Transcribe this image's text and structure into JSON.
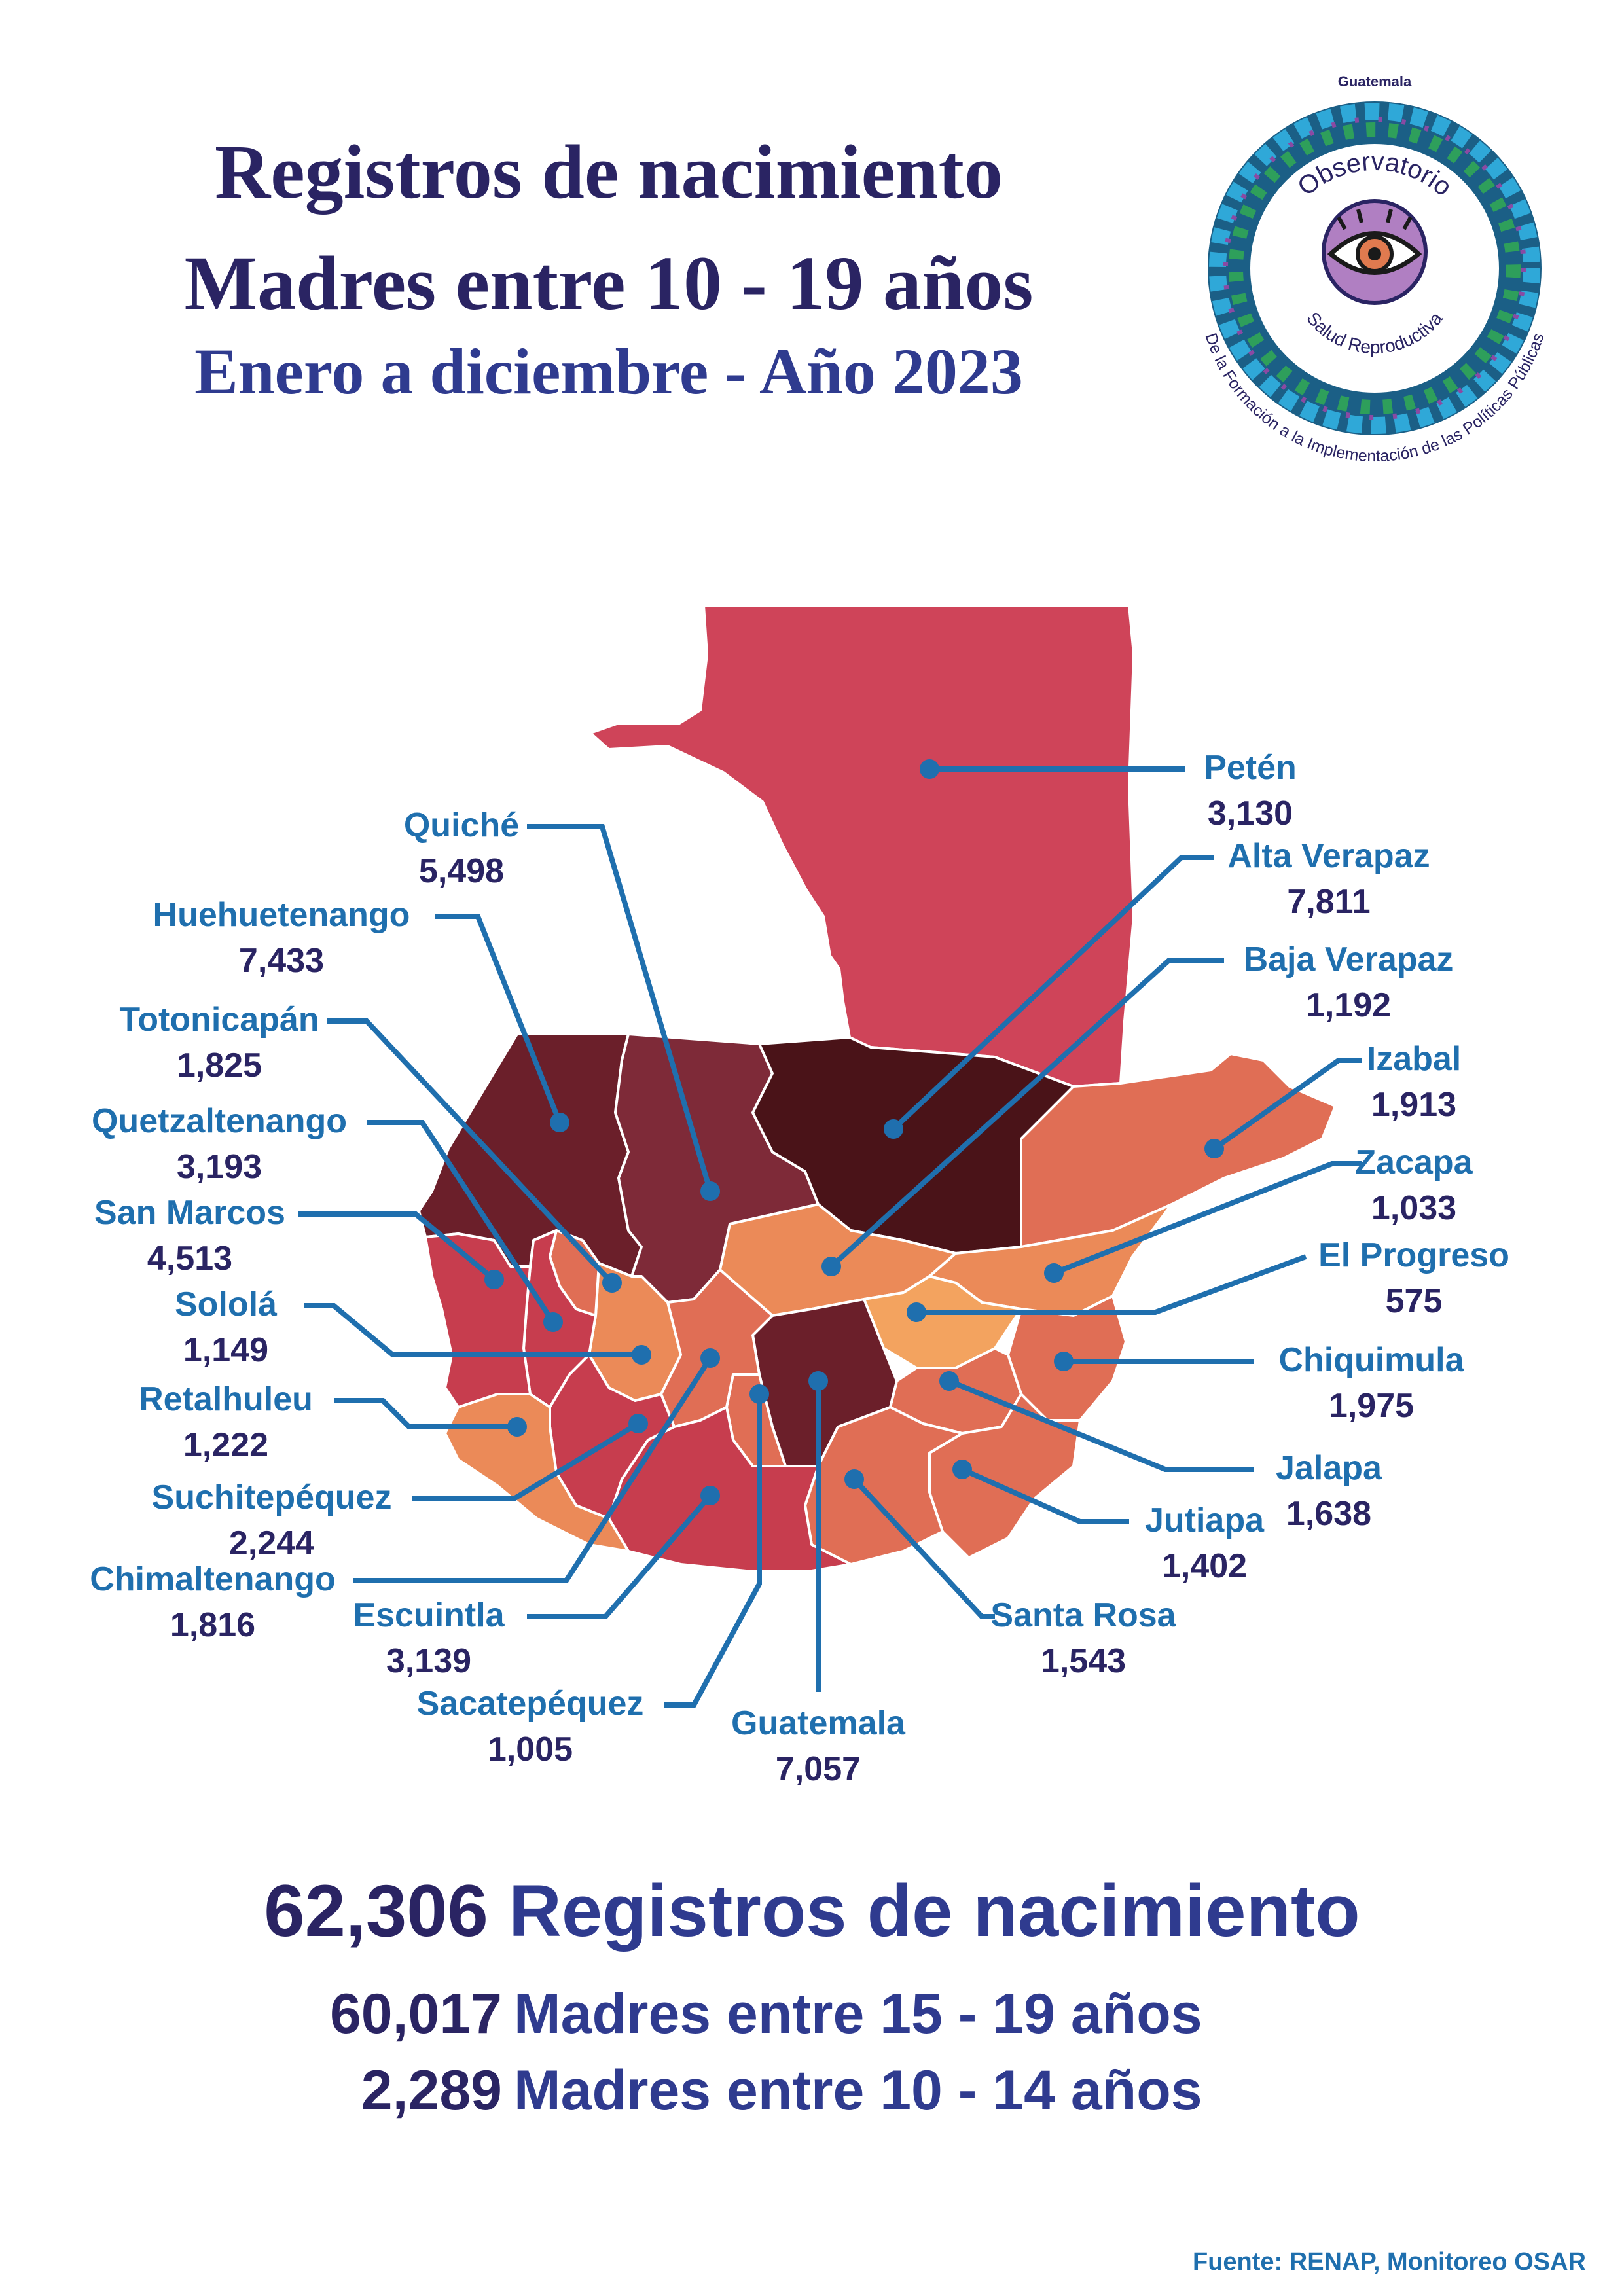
{
  "header": {
    "title_line1": "Registros de nacimiento",
    "title_line2": "Madres entre 10 - 19 años",
    "subtitle": "Enero a diciembre - Año 2023"
  },
  "logo": {
    "top_text": "Guatemala",
    "ring_text": "Observatorio",
    "ring_text2": "Salud Reproductiva",
    "bottom_text": "De la Formación a la Implementación de las Políticas Públicas",
    "icon": "eye-icon"
  },
  "map": {
    "country": "Guatemala",
    "departments": [
      {
        "name": "Petén",
        "value": "3,130"
      },
      {
        "name": "Quiché",
        "value": "5,498"
      },
      {
        "name": "Alta Verapaz",
        "value": "7,811"
      },
      {
        "name": "Huehuetenango",
        "value": "7,433"
      },
      {
        "name": "Baja Verapaz",
        "value": "1,192"
      },
      {
        "name": "Totonicapán",
        "value": "1,825"
      },
      {
        "name": "Izabal",
        "value": "1,913"
      },
      {
        "name": "Quetzaltenango",
        "value": "3,193"
      },
      {
        "name": "Zacapa",
        "value": "1,033"
      },
      {
        "name": "San Marcos",
        "value": "4,513"
      },
      {
        "name": "El Progreso",
        "value": "575"
      },
      {
        "name": "Sololá",
        "value": "1,149"
      },
      {
        "name": "Chiquimula",
        "value": "1,975"
      },
      {
        "name": "Retalhuleu",
        "value": "1,222"
      },
      {
        "name": "Jalapa",
        "value": "1,638"
      },
      {
        "name": "Suchitepéquez",
        "value": "2,244"
      },
      {
        "name": "Jutiapa",
        "value": "1,402"
      },
      {
        "name": "Chimaltenango",
        "value": "1,816"
      },
      {
        "name": "Escuintla",
        "value": "3,139"
      },
      {
        "name": "Santa Rosa",
        "value": "1,543"
      },
      {
        "name": "Sacatepéquez",
        "value": "1,005"
      },
      {
        "name": "Guatemala",
        "value": "7,057"
      }
    ],
    "colors": {
      "peten": "#cf4459",
      "darkest": "#4a1318",
      "dark": "#6b1f2a",
      "dark_red": "#7e2a38",
      "red": "#c73d4e",
      "coral": "#e06e55",
      "orange": "#eb8a58",
      "light_orange": "#f3a35f",
      "leader": "#1f6fae"
    }
  },
  "summary": {
    "total_value": "62,306",
    "total_label": "Registros de nacimiento",
    "age_15_19_value": "60,017",
    "age_15_19_label": "Madres entre 15 - 19 años",
    "age_10_14_value": "2,289",
    "age_10_14_label": "Madres entre 10 - 14 años"
  },
  "source": "Fuente: RENAP, Monitoreo OSAR"
}
